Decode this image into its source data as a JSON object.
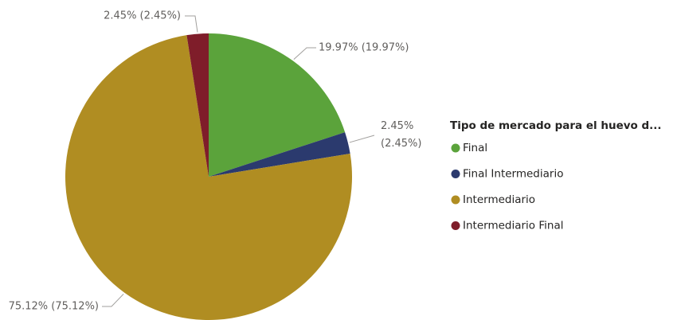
{
  "chart_data": {
    "type": "pie",
    "legend_title": "Tipo de mercado para el huevo d...",
    "categories": [
      "Final",
      "Final Intermediario",
      "Intermediario",
      "Intermediario Final"
    ],
    "values": [
      19.97,
      2.45,
      75.12,
      2.45
    ],
    "value_labels": [
      "19.97% (19.97%)",
      "2.45% (2.45%)",
      "75.12% (75.12%)",
      "2.45% (2.45%)"
    ],
    "colors": [
      "#5ba33b",
      "#2b3a6e",
      "#b08d22",
      "#7f1d2a"
    ],
    "legend": "right"
  }
}
